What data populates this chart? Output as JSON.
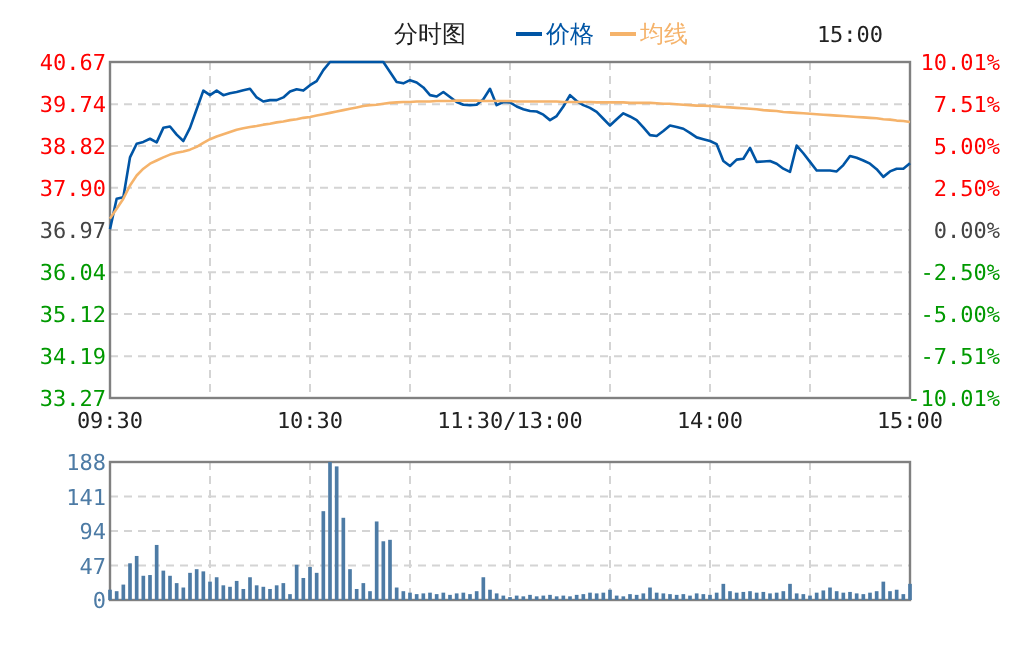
{
  "chart_data": [
    {
      "type": "line",
      "title": "分时图",
      "legend": "top",
      "grid": true,
      "annotations": [
        "15:00"
      ],
      "categories": [
        "09:30",
        null,
        null,
        null,
        null,
        null,
        null,
        null,
        null,
        null,
        null,
        null,
        null,
        null,
        null,
        null,
        null,
        null,
        null,
        null,
        null,
        null,
        null,
        null,
        null,
        null,
        null,
        null,
        null,
        null,
        "10:30",
        null,
        null,
        null,
        null,
        null,
        null,
        null,
        null,
        null,
        null,
        null,
        null,
        null,
        null,
        null,
        null,
        null,
        null,
        null,
        null,
        null,
        null,
        null,
        null,
        null,
        null,
        null,
        null,
        null,
        "11:30/13:00",
        null,
        null,
        null,
        null,
        null,
        null,
        null,
        null,
        null,
        null,
        null,
        null,
        null,
        null,
        null,
        null,
        null,
        null,
        null,
        null,
        null,
        null,
        null,
        null,
        null,
        null,
        null,
        null,
        null,
        "14:00",
        null,
        null,
        null,
        null,
        null,
        null,
        null,
        null,
        null,
        null,
        null,
        null,
        null,
        null,
        null,
        null,
        null,
        null,
        null,
        null,
        null,
        null,
        null,
        null,
        null,
        null,
        null,
        null,
        null,
        "15:00"
      ],
      "ylim": [
        33.27,
        40.67
      ],
      "yticks": [
        {
          "value": 33.27,
          "label": "33.27"
        },
        {
          "value": 34.19,
          "label": "34.19"
        },
        {
          "value": 35.12,
          "label": "35.12"
        },
        {
          "value": 36.04,
          "label": "36.04"
        },
        {
          "value": 36.97,
          "label": "36.97"
        },
        {
          "value": 37.9,
          "label": "37.90"
        },
        {
          "value": 38.82,
          "label": "38.82"
        },
        {
          "value": 39.74,
          "label": "39.74"
        },
        {
          "value": 40.67,
          "label": "40.67"
        }
      ],
      "y2lim": [
        -10.01,
        10.01
      ],
      "y2ticks": [
        {
          "value": -10.01,
          "label": "-10.01%"
        },
        {
          "value": -7.51,
          "label": "-7.51%"
        },
        {
          "value": -5,
          "label": "-5.00%"
        },
        {
          "value": -2.5,
          "label": "-2.50%"
        },
        {
          "value": 0,
          "label": "0.00%"
        },
        {
          "value": 2.5,
          "label": "2.50%"
        },
        {
          "value": 5,
          "label": "5.00%"
        },
        {
          "value": 7.51,
          "label": "7.51%"
        },
        {
          "value": 10.01,
          "label": "10.01%"
        }
      ],
      "series": [
        {
          "name": "价格",
          "color": "#0055a5",
          "values": [
            36.99,
            37.66,
            37.69,
            38.57,
            38.87,
            38.91,
            38.98,
            38.9,
            39.22,
            39.25,
            39.07,
            38.93,
            39.22,
            39.63,
            40.04,
            39.94,
            40.04,
            39.94,
            39.98,
            40.01,
            40.05,
            40.08,
            39.89,
            39.8,
            39.83,
            39.83,
            39.89,
            40.02,
            40.07,
            40.04,
            40.16,
            40.25,
            40.49,
            40.67,
            40.67,
            40.67,
            40.67,
            40.67,
            40.67,
            40.67,
            40.67,
            40.67,
            40.45,
            40.23,
            40.2,
            40.27,
            40.22,
            40.11,
            39.94,
            39.91,
            40.01,
            39.9,
            39.79,
            39.73,
            39.72,
            39.73,
            39.85,
            40.08,
            39.72,
            39.79,
            39.78,
            39.69,
            39.63,
            39.59,
            39.58,
            39.51,
            39.39,
            39.48,
            39.69,
            39.94,
            39.81,
            39.72,
            39.66,
            39.57,
            39.42,
            39.27,
            39.41,
            39.54,
            39.47,
            39.39,
            39.23,
            39.06,
            39.04,
            39.15,
            39.27,
            39.24,
            39.2,
            39.11,
            39.01,
            38.97,
            38.93,
            38.86,
            38.49,
            38.38,
            38.52,
            38.54,
            38.78,
            38.47,
            38.48,
            38.49,
            38.43,
            38.32,
            38.25,
            38.83,
            38.66,
            38.47,
            38.28,
            38.28,
            38.28,
            38.26,
            38.4,
            38.6,
            38.56,
            38.5,
            38.43,
            38.31,
            38.14,
            38.26,
            38.32,
            38.32,
            38.44
          ]
        },
        {
          "name": "均线",
          "color": "#f5b36b",
          "values": [
            37.22,
            37.44,
            37.66,
            37.95,
            38.17,
            38.32,
            38.43,
            38.5,
            38.57,
            38.63,
            38.67,
            38.7,
            38.74,
            38.8,
            38.89,
            38.97,
            39.03,
            39.08,
            39.13,
            39.18,
            39.21,
            39.24,
            39.26,
            39.29,
            39.31,
            39.34,
            39.36,
            39.39,
            39.41,
            39.44,
            39.46,
            39.49,
            39.52,
            39.55,
            39.58,
            39.61,
            39.64,
            39.67,
            39.7,
            39.72,
            39.73,
            39.75,
            39.77,
            39.78,
            39.79,
            39.79,
            39.8,
            39.8,
            39.8,
            39.81,
            39.81,
            39.81,
            39.82,
            39.82,
            39.82,
            39.82,
            39.81,
            39.81,
            39.81,
            39.81,
            39.81,
            39.8,
            39.8,
            39.8,
            39.8,
            39.8,
            39.8,
            39.8,
            39.79,
            39.79,
            39.79,
            39.79,
            39.79,
            39.78,
            39.78,
            39.78,
            39.78,
            39.78,
            39.77,
            39.77,
            39.77,
            39.77,
            39.76,
            39.75,
            39.75,
            39.74,
            39.73,
            39.72,
            39.71,
            39.71,
            39.7,
            39.69,
            39.68,
            39.67,
            39.66,
            39.65,
            39.64,
            39.63,
            39.61,
            39.6,
            39.59,
            39.57,
            39.56,
            39.55,
            39.54,
            39.53,
            39.52,
            39.51,
            39.5,
            39.49,
            39.48,
            39.47,
            39.46,
            39.45,
            39.44,
            39.43,
            39.41,
            39.4,
            39.38,
            39.37,
            39.35
          ]
        }
      ]
    },
    {
      "type": "bar",
      "grid": true,
      "tick_labels": "y",
      "color": "#4d7ba5",
      "ylim": [
        0,
        188
      ],
      "yticks": [
        0,
        47,
        94,
        141,
        188
      ],
      "categories": [
        null,
        null,
        null,
        null,
        null,
        null,
        null,
        null,
        null,
        null,
        null,
        null,
        null,
        null,
        null,
        null,
        null,
        null,
        null,
        null,
        null,
        null,
        null,
        null,
        null,
        null,
        null,
        null,
        null,
        null,
        null,
        null,
        null,
        null,
        null,
        null,
        null,
        null,
        null,
        null,
        null,
        null,
        null,
        null,
        null,
        null,
        null,
        null,
        null,
        null,
        null,
        null,
        null,
        null,
        null,
        null,
        null,
        null,
        null,
        null,
        null,
        null,
        null,
        null,
        null,
        null,
        null,
        null,
        null,
        null,
        null,
        null,
        null,
        null,
        null,
        null,
        null,
        null,
        null,
        null,
        null,
        null,
        null,
        null,
        null,
        null,
        null,
        null,
        null,
        null,
        null,
        null,
        null,
        null,
        null,
        null,
        null,
        null,
        null,
        null,
        null,
        null,
        null,
        null,
        null,
        null,
        null,
        null,
        null,
        null,
        null,
        null,
        null,
        null,
        null,
        null,
        null,
        null,
        null,
        null,
        null
      ],
      "values": [
        14,
        12,
        21,
        50,
        60,
        33,
        34,
        75,
        40,
        33,
        23,
        17,
        37,
        42,
        39,
        25,
        31,
        20,
        18,
        26,
        15,
        31,
        20,
        18,
        15,
        20,
        23,
        8,
        48,
        30,
        45,
        37,
        121,
        188,
        182,
        112,
        42,
        15,
        23,
        12,
        107,
        80,
        82,
        17,
        12,
        10,
        8,
        9,
        10,
        8,
        10,
        7,
        9,
        10,
        8,
        12,
        31,
        14,
        9,
        6,
        4,
        6,
        5,
        7,
        5,
        6,
        7,
        5,
        6,
        5,
        7,
        8,
        10,
        9,
        10,
        14,
        6,
        5,
        8,
        7,
        9,
        17,
        10,
        9,
        8,
        7,
        8,
        6,
        9,
        8,
        7,
        10,
        22,
        12,
        10,
        11,
        12,
        10,
        11,
        9,
        10,
        12,
        22,
        9,
        8,
        6,
        10,
        13,
        17,
        12,
        10,
        11,
        9,
        8,
        10,
        12,
        25,
        12,
        14,
        8,
        22
      ]
    }
  ]
}
